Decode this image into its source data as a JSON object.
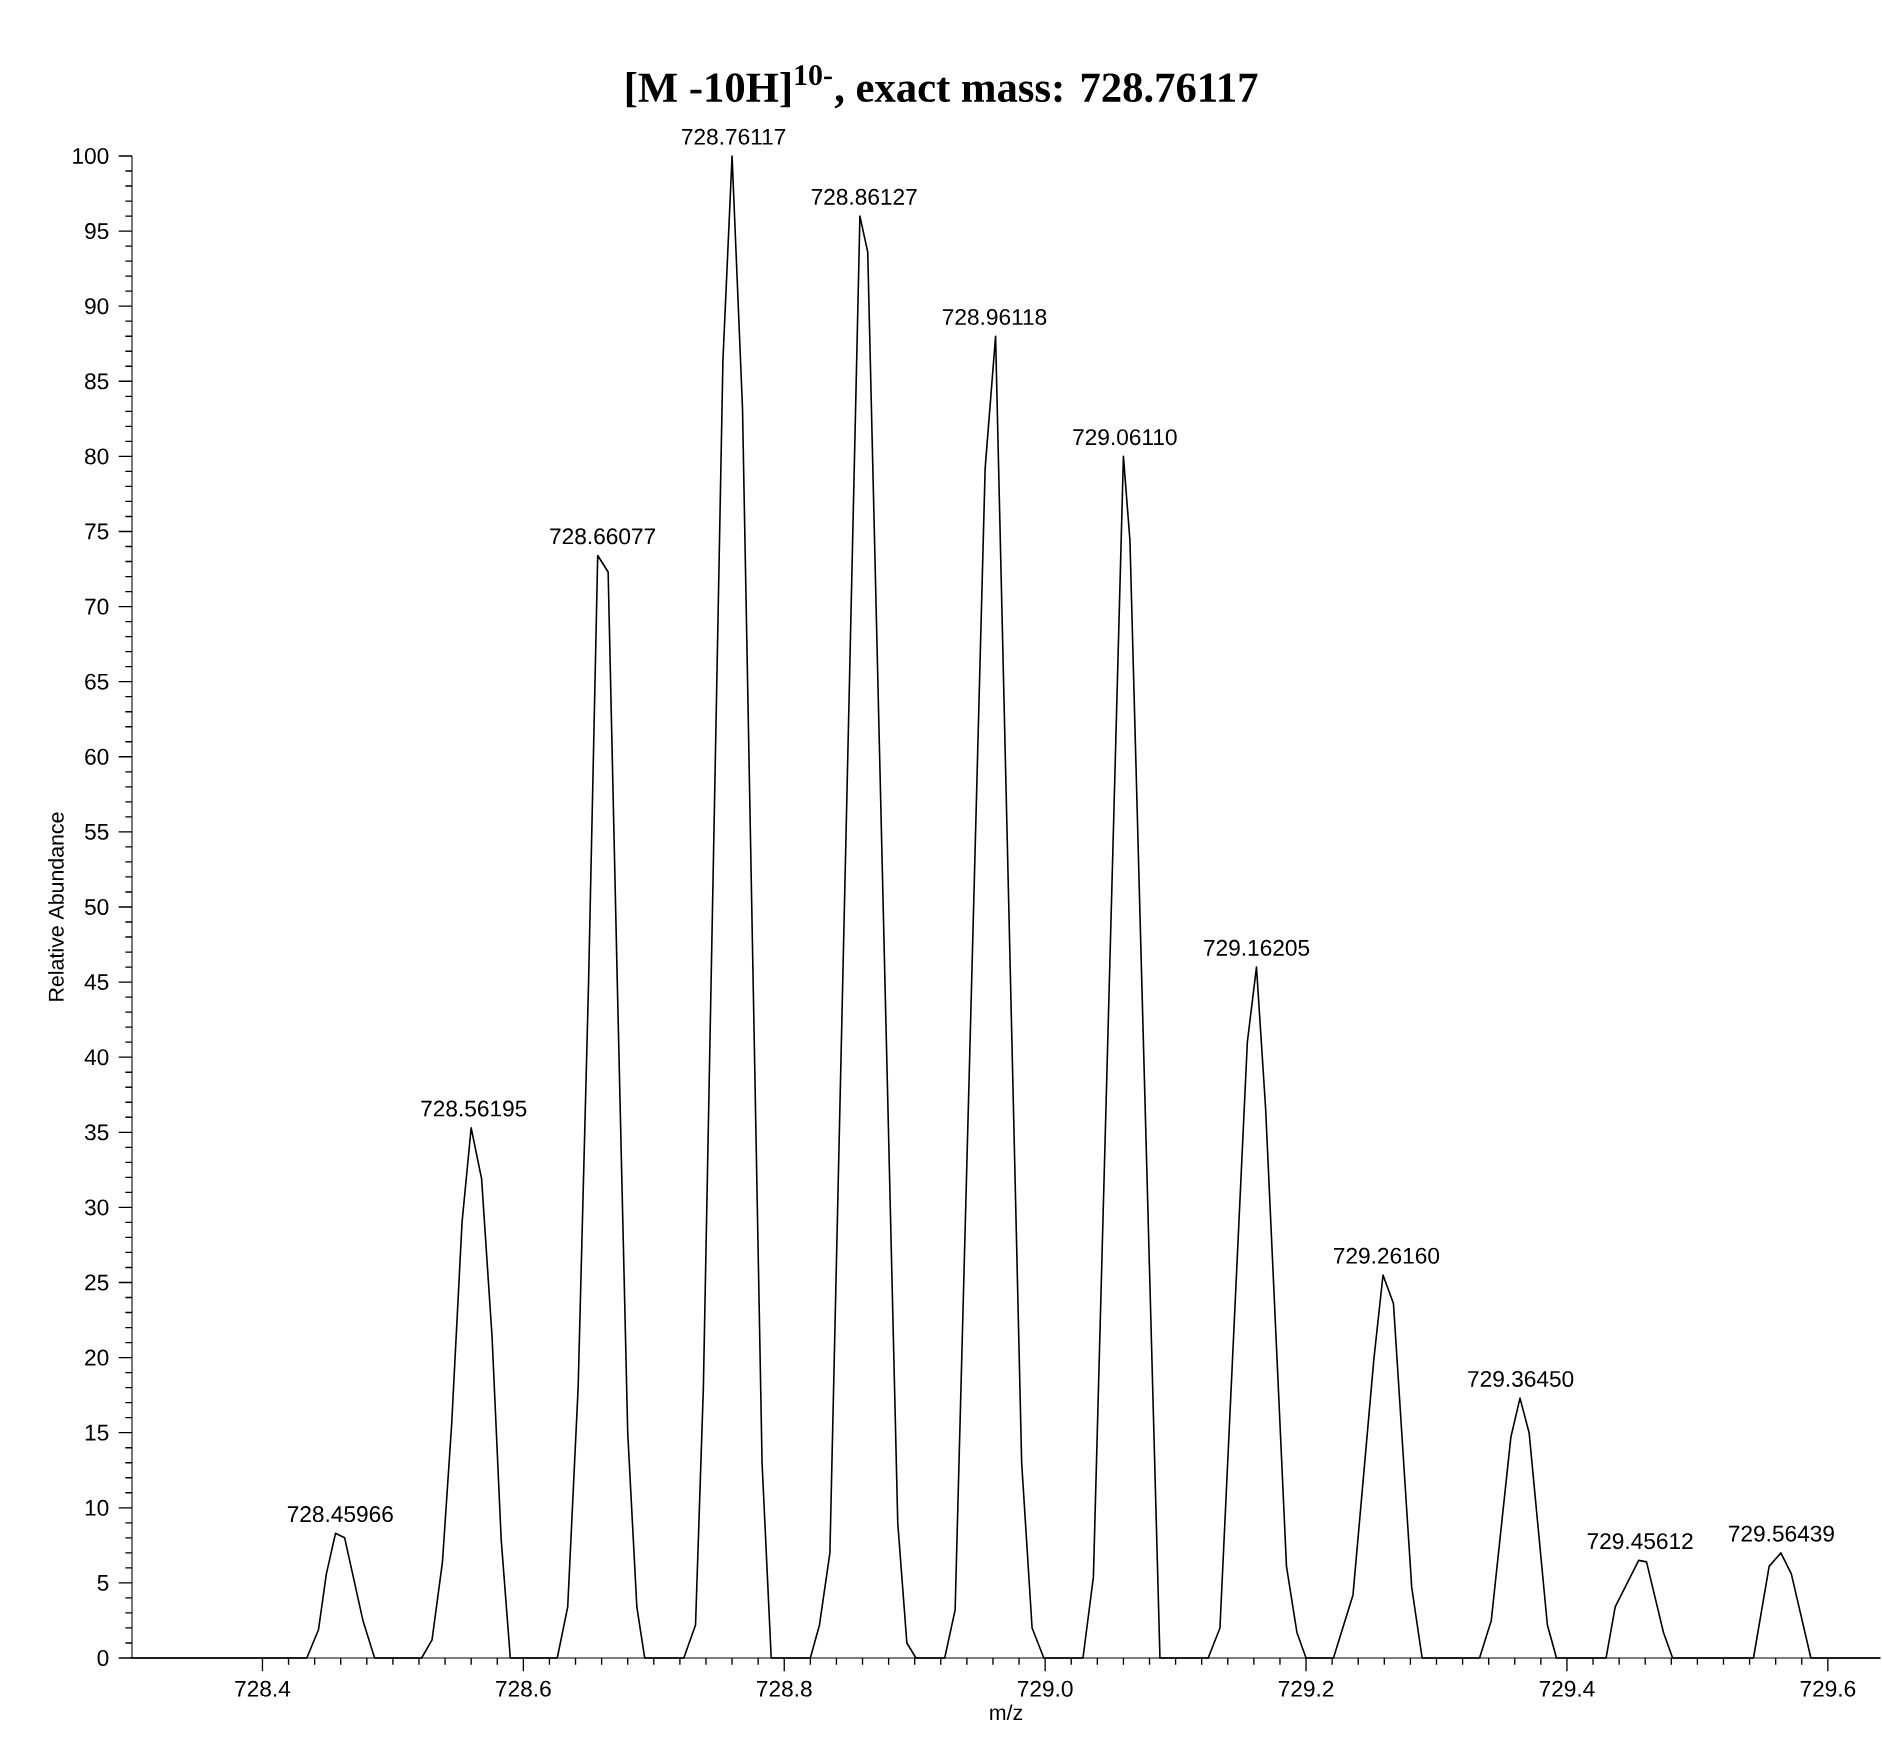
{
  "chart_data": {
    "type": "line",
    "title": "[M -10H]$^{10-}$, exact mass: 728.76117",
    "xlabel": "m/z",
    "ylabel": "Relative Abundance",
    "xlim": [
      728.3,
      729.64
    ],
    "ylim": [
      0,
      100
    ],
    "xticks": [
      {
        "value": 728.4,
        "label": "728.4"
      },
      {
        "value": 728.6,
        "label": "728.6"
      },
      {
        "value": 728.8,
        "label": "728.8"
      },
      {
        "value": 729.0,
        "label": "729.0"
      },
      {
        "value": 729.2,
        "label": "729.2"
      },
      {
        "value": 729.4,
        "label": "729.4"
      },
      {
        "value": 729.6,
        "label": "729.6"
      }
    ],
    "yticks": [
      0,
      5,
      10,
      15,
      20,
      25,
      30,
      35,
      40,
      45,
      50,
      55,
      60,
      65,
      70,
      75,
      80,
      85,
      90,
      95,
      100
    ],
    "grid": false,
    "marker": "none",
    "line_style": "solid",
    "series": [
      {
        "color": "#000000",
        "x": [
          728.3,
          728.434,
          728.443,
          728.449,
          728.456,
          728.463,
          728.477,
          728.486,
          728.522,
          728.53,
          728.538,
          728.545,
          728.553,
          728.56,
          728.568,
          728.576,
          728.583,
          728.59,
          728.626,
          728.634,
          728.642,
          728.65,
          728.657,
          728.665,
          728.672,
          728.68,
          728.687,
          728.693,
          728.723,
          728.732,
          728.738,
          728.753,
          728.76,
          728.768,
          728.783,
          728.79,
          728.82,
          728.827,
          728.835,
          728.858,
          728.864,
          728.887,
          728.894,
          728.901,
          728.923,
          728.931,
          728.954,
          728.962,
          728.982,
          728.99,
          728.999,
          729.029,
          729.037,
          729.06,
          729.065,
          729.088,
          729.125,
          729.134,
          729.155,
          729.162,
          729.169,
          729.185,
          729.193,
          729.2,
          729.221,
          729.236,
          729.252,
          729.259,
          729.267,
          729.281,
          729.289,
          729.333,
          729.342,
          729.357,
          729.364,
          729.371,
          729.385,
          729.392,
          729.43,
          729.437,
          729.455,
          729.461,
          729.474,
          729.481,
          729.543,
          729.555,
          729.564,
          729.572,
          729.587,
          729.64
        ],
        "values": [
          0,
          0,
          1.9,
          5.6,
          8.3,
          8.0,
          2.5,
          0,
          0,
          1.2,
          6.4,
          15.5,
          29,
          35.3,
          31.9,
          21.4,
          7.9,
          0,
          0,
          3.4,
          18,
          45,
          73.4,
          72.3,
          45,
          15,
          3.4,
          0,
          0,
          2.2,
          18,
          86.4,
          100,
          83.2,
          13,
          0,
          0,
          2.2,
          7,
          96,
          93.6,
          9,
          1,
          0,
          0,
          3.2,
          79.2,
          88,
          13,
          2,
          0,
          0,
          5.4,
          80,
          74.4,
          0,
          0,
          2,
          41,
          46,
          36.6,
          6.1,
          1.7,
          0,
          0,
          4.2,
          19.9,
          25.5,
          23.6,
          4.7,
          0,
          0,
          2.5,
          14.7,
          17.3,
          15,
          2.2,
          0,
          0,
          3.4,
          6.5,
          6.4,
          1.7,
          0,
          0,
          6.1,
          7.0,
          5.6,
          0,
          0
        ]
      }
    ],
    "annotations": [
      {
        "text": "728.45966",
        "x": 728.45966,
        "y": 8.3
      },
      {
        "text": "728.56195",
        "x": 728.56195,
        "y": 35.3
      },
      {
        "text": "728.66077",
        "x": 728.66077,
        "y": 73.4
      },
      {
        "text": "728.76117",
        "x": 728.76117,
        "y": 100
      },
      {
        "text": "728.86127",
        "x": 728.86127,
        "y": 96
      },
      {
        "text": "728.96118",
        "x": 728.96118,
        "y": 88
      },
      {
        "text": "729.06110",
        "x": 729.0611,
        "y": 80
      },
      {
        "text": "729.16205",
        "x": 729.16205,
        "y": 46
      },
      {
        "text": "729.26160",
        "x": 729.2616,
        "y": 25.5
      },
      {
        "text": "729.36450",
        "x": 729.3645,
        "y": 17.3
      },
      {
        "text": "729.45612",
        "x": 729.45612,
        "y": 6.5
      },
      {
        "text": "729.56439",
        "x": 729.56439,
        "y": 7.0
      }
    ]
  }
}
